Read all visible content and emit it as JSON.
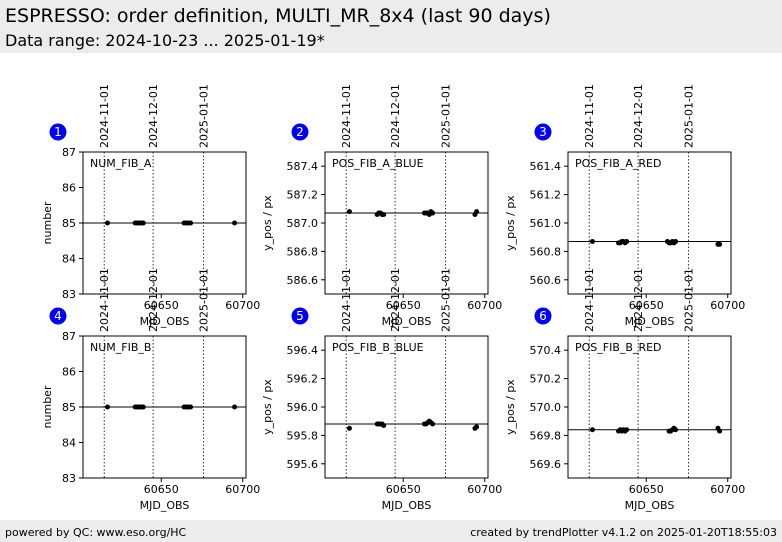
{
  "header": {
    "title": "ESPRESSO: order definition, MULTI_MR_8x4 (last 90 days)",
    "subtitle": "Data range: 2024-10-23 ... 2025-01-19*"
  },
  "footer": {
    "left": "powered by QC: www.eso.org/HC",
    "right": "created by trendPlotter v4.1.2 on 2025-01-20T18:55:03"
  },
  "colors": {
    "badge": "#0000ee",
    "header_bg": "#ececec",
    "points": "#000000"
  },
  "chart_data": [
    {
      "type": "scatter",
      "panel": "1",
      "label": "NUM_FIB_A",
      "xlabel": "MJD_OBS",
      "ylabel": "number",
      "xlim": [
        60602,
        60702
      ],
      "ylim": [
        83,
        87
      ],
      "yticks": [
        83,
        84,
        85,
        86,
        87
      ],
      "ytick_labels": [
        "83",
        "84",
        "85",
        "86",
        "87"
      ],
      "xticks": [
        60650,
        60700
      ],
      "xtick_labels": [
        "60650",
        "60700"
      ],
      "date_lines": [
        60615,
        60645,
        60676
      ],
      "date_labels": [
        "2024-11-01",
        "2024-12-01",
        "2025-01-01"
      ],
      "reference": 85,
      "x": [
        60617,
        60634,
        60635,
        60636,
        60637,
        60638,
        60639,
        60664,
        60665,
        60666,
        60667,
        60668,
        60695
      ],
      "y": [
        85,
        85,
        85,
        85,
        85,
        85,
        85,
        85,
        85,
        85,
        85,
        85,
        85
      ]
    },
    {
      "type": "scatter",
      "panel": "2",
      "label": "POS_FIB_A_BLUE",
      "xlabel": "MJD_OBS",
      "ylabel": "y_pos / px",
      "xlim": [
        60602,
        60702
      ],
      "ylim": [
        586.5,
        587.5
      ],
      "yticks": [
        586.6,
        586.8,
        587.0,
        587.2,
        587.4
      ],
      "ytick_labels": [
        "586.6",
        "586.8",
        "587.0",
        "587.2",
        "587.4"
      ],
      "xticks": [
        60650,
        60700
      ],
      "xtick_labels": [
        "60650",
        "60700"
      ],
      "date_lines": [
        60615,
        60645,
        60676
      ],
      "date_labels": [
        "2024-11-01",
        "2024-12-01",
        "2025-01-01"
      ],
      "reference": 587.07,
      "x": [
        60617,
        60634,
        60635,
        60636,
        60637,
        60638,
        60663,
        60664,
        60665,
        60666,
        60667,
        60668,
        60694,
        60695
      ],
      "y": [
        587.08,
        587.06,
        587.07,
        587.07,
        587.06,
        587.06,
        587.07,
        587.07,
        587.07,
        587.06,
        587.08,
        587.07,
        587.06,
        587.08
      ]
    },
    {
      "type": "scatter",
      "panel": "3",
      "label": "POS_FIB_A_RED",
      "xlabel": "MJD_OBS",
      "ylabel": "y_pos / px",
      "xlim": [
        60602,
        60702
      ],
      "ylim": [
        560.5,
        561.5
      ],
      "yticks": [
        560.6,
        560.8,
        561.0,
        561.2,
        561.4
      ],
      "ytick_labels": [
        "560.6",
        "560.8",
        "561.0",
        "561.2",
        "561.4"
      ],
      "xticks": [
        60650,
        60700
      ],
      "xtick_labels": [
        "60650",
        "60700"
      ],
      "date_lines": [
        60615,
        60645,
        60676
      ],
      "date_labels": [
        "2024-11-01",
        "2024-12-01",
        "2025-01-01"
      ],
      "reference": 560.87,
      "x": [
        60617,
        60633,
        60634,
        60635,
        60636,
        60637,
        60638,
        60663,
        60664,
        60665,
        60666,
        60667,
        60668,
        60694,
        60695
      ],
      "y": [
        560.87,
        560.86,
        560.86,
        560.87,
        560.87,
        560.86,
        560.87,
        560.87,
        560.86,
        560.86,
        560.87,
        560.86,
        560.87,
        560.85,
        560.85
      ]
    },
    {
      "type": "scatter",
      "panel": "4",
      "label": "NUM_FIB_B",
      "xlabel": "MJD_OBS",
      "ylabel": "number",
      "xlim": [
        60602,
        60702
      ],
      "ylim": [
        83,
        87
      ],
      "yticks": [
        83,
        84,
        85,
        86,
        87
      ],
      "ytick_labels": [
        "83",
        "84",
        "85",
        "86",
        "87"
      ],
      "xticks": [
        60650,
        60700
      ],
      "xtick_labels": [
        "60650",
        "60700"
      ],
      "date_lines": [
        60615,
        60645,
        60676
      ],
      "date_labels": [
        "2024-11-01",
        "2024-12-01",
        "2025-01-01"
      ],
      "reference": 85,
      "x": [
        60617,
        60634,
        60635,
        60636,
        60637,
        60638,
        60639,
        60664,
        60665,
        60666,
        60667,
        60668,
        60695
      ],
      "y": [
        85,
        85,
        85,
        85,
        85,
        85,
        85,
        85,
        85,
        85,
        85,
        85,
        85
      ]
    },
    {
      "type": "scatter",
      "panel": "5",
      "label": "POS_FIB_B_BLUE",
      "xlabel": "MJD_OBS",
      "ylabel": "y_pos / px",
      "xlim": [
        60602,
        60702
      ],
      "ylim": [
        595.5,
        596.5
      ],
      "yticks": [
        595.6,
        595.8,
        596.0,
        596.2,
        596.4
      ],
      "ytick_labels": [
        "595.6",
        "595.8",
        "596.0",
        "596.2",
        "596.4"
      ],
      "xticks": [
        60650,
        60700
      ],
      "xtick_labels": [
        "60650",
        "60700"
      ],
      "date_lines": [
        60615,
        60645,
        60676
      ],
      "date_labels": [
        "2024-11-01",
        "2024-12-01",
        "2025-01-01"
      ],
      "reference": 595.88,
      "x": [
        60617,
        60634,
        60635,
        60636,
        60637,
        60638,
        60663,
        60664,
        60665,
        60666,
        60667,
        60668,
        60694,
        60695
      ],
      "y": [
        595.85,
        595.88,
        595.88,
        595.88,
        595.88,
        595.87,
        595.88,
        595.88,
        595.89,
        595.9,
        595.89,
        595.88,
        595.85,
        595.86
      ]
    },
    {
      "type": "scatter",
      "panel": "6",
      "label": "POS_FIB_B_RED",
      "xlabel": "MJD_OBS",
      "ylabel": "y_pos / px",
      "xlim": [
        60602,
        60702
      ],
      "ylim": [
        569.5,
        570.5
      ],
      "yticks": [
        569.6,
        569.8,
        570.0,
        570.2,
        570.4
      ],
      "ytick_labels": [
        "569.6",
        "569.8",
        "570.0",
        "570.2",
        "570.4"
      ],
      "xticks": [
        60650,
        60700
      ],
      "xtick_labels": [
        "60650",
        "60700"
      ],
      "date_lines": [
        60615,
        60645,
        60676
      ],
      "date_labels": [
        "2024-11-01",
        "2024-12-01",
        "2025-01-01"
      ],
      "reference": 569.84,
      "x": [
        60617,
        60633,
        60634,
        60635,
        60636,
        60637,
        60638,
        60664,
        60665,
        60666,
        60667,
        60668,
        60694,
        60695
      ],
      "y": [
        569.84,
        569.83,
        569.84,
        569.83,
        569.84,
        569.83,
        569.84,
        569.83,
        569.83,
        569.84,
        569.85,
        569.84,
        569.85,
        569.83
      ]
    }
  ]
}
